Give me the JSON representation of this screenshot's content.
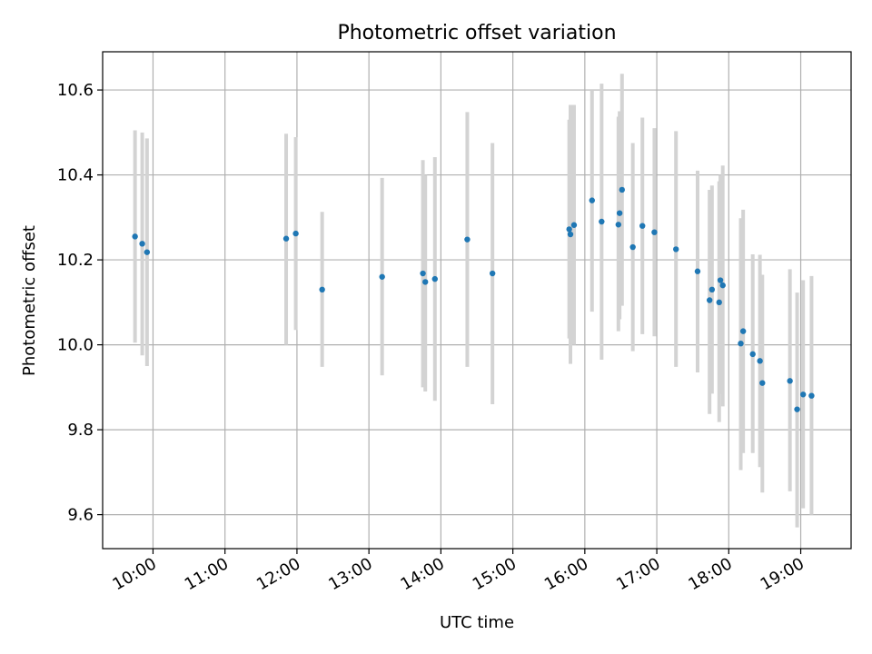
{
  "chart_data": {
    "type": "scatter",
    "title": "Photometric offset variation",
    "xlabel": "UTC time",
    "ylabel": "Photometric offset",
    "xlim": [
      "09:18",
      "19:42"
    ],
    "ylim": [
      9.52,
      10.69
    ],
    "grid": true,
    "x_ticks": [
      "10:00",
      "11:00",
      "12:00",
      "13:00",
      "14:00",
      "15:00",
      "16:00",
      "17:00",
      "18:00",
      "19:00"
    ],
    "y_ticks": [
      9.6,
      9.8,
      10.0,
      10.2,
      10.4,
      10.6
    ],
    "marker_color": "#1f77b4",
    "errorbar_color": "#d3d3d3",
    "series": [
      {
        "points": [
          {
            "x": "09:45",
            "y": 10.255,
            "lo": 10.005,
            "hi": 10.505
          },
          {
            "x": "09:51",
            "y": 10.238,
            "lo": 9.975,
            "hi": 10.5
          },
          {
            "x": "09:55",
            "y": 10.218,
            "lo": 9.95,
            "hi": 10.486
          },
          {
            "x": "11:51",
            "y": 10.25,
            "lo": 10.0,
            "hi": 10.497
          },
          {
            "x": "11:59",
            "y": 10.262,
            "lo": 10.035,
            "hi": 10.489
          },
          {
            "x": "12:21",
            "y": 10.13,
            "lo": 9.948,
            "hi": 10.313
          },
          {
            "x": "13:11",
            "y": 10.16,
            "lo": 9.928,
            "hi": 10.393
          },
          {
            "x": "13:45",
            "y": 10.168,
            "lo": 9.9,
            "hi": 10.435
          },
          {
            "x": "13:47",
            "y": 10.148,
            "lo": 9.89,
            "hi": 10.4
          },
          {
            "x": "13:55",
            "y": 10.155,
            "lo": 9.868,
            "hi": 10.442
          },
          {
            "x": "14:22",
            "y": 10.248,
            "lo": 9.948,
            "hi": 10.548
          },
          {
            "x": "14:43",
            "y": 10.168,
            "lo": 9.86,
            "hi": 10.475
          },
          {
            "x": "15:47",
            "y": 10.272,
            "lo": 10.015,
            "hi": 10.53
          },
          {
            "x": "15:48",
            "y": 10.26,
            "lo": 9.955,
            "hi": 10.565
          },
          {
            "x": "15:51",
            "y": 10.282,
            "lo": 10.0,
            "hi": 10.565
          },
          {
            "x": "16:06",
            "y": 10.34,
            "lo": 10.078,
            "hi": 10.6
          },
          {
            "x": "16:14",
            "y": 10.29,
            "lo": 9.965,
            "hi": 10.615
          },
          {
            "x": "16:28",
            "y": 10.283,
            "lo": 10.032,
            "hi": 10.537
          },
          {
            "x": "16:29",
            "y": 10.31,
            "lo": 10.06,
            "hi": 10.55
          },
          {
            "x": "16:31",
            "y": 10.365,
            "lo": 10.092,
            "hi": 10.638
          },
          {
            "x": "16:40",
            "y": 10.23,
            "lo": 9.985,
            "hi": 10.475
          },
          {
            "x": "16:48",
            "y": 10.28,
            "lo": 10.025,
            "hi": 10.535
          },
          {
            "x": "16:58",
            "y": 10.265,
            "lo": 10.02,
            "hi": 10.51
          },
          {
            "x": "17:16",
            "y": 10.225,
            "lo": 9.948,
            "hi": 10.503
          },
          {
            "x": "17:34",
            "y": 10.173,
            "lo": 9.935,
            "hi": 10.41
          },
          {
            "x": "17:44",
            "y": 10.105,
            "lo": 9.837,
            "hi": 10.365
          },
          {
            "x": "17:46",
            "y": 10.13,
            "lo": 9.885,
            "hi": 10.375
          },
          {
            "x": "17:52",
            "y": 10.1,
            "lo": 9.818,
            "hi": 10.385
          },
          {
            "x": "17:53",
            "y": 10.152,
            "lo": 9.885,
            "hi": 10.4
          },
          {
            "x": "17:55",
            "y": 10.14,
            "lo": 9.855,
            "hi": 10.422
          },
          {
            "x": "18:10",
            "y": 10.003,
            "lo": 9.705,
            "hi": 10.298
          },
          {
            "x": "18:12",
            "y": 10.032,
            "lo": 9.745,
            "hi": 10.318
          },
          {
            "x": "18:20",
            "y": 9.978,
            "lo": 9.745,
            "hi": 10.213
          },
          {
            "x": "18:26",
            "y": 9.962,
            "lo": 9.712,
            "hi": 10.212
          },
          {
            "x": "18:28",
            "y": 9.91,
            "lo": 9.652,
            "hi": 10.165
          },
          {
            "x": "18:51",
            "y": 9.915,
            "lo": 9.655,
            "hi": 10.178
          },
          {
            "x": "18:57",
            "y": 9.848,
            "lo": 9.57,
            "hi": 10.123
          },
          {
            "x": "19:02",
            "y": 9.883,
            "lo": 9.615,
            "hi": 10.152
          },
          {
            "x": "19:09",
            "y": 9.88,
            "lo": 9.6,
            "hi": 10.162
          }
        ]
      }
    ]
  }
}
